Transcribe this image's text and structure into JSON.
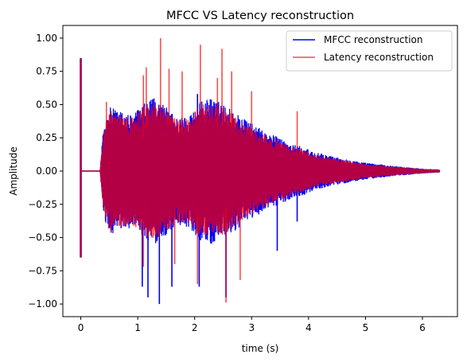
{
  "chart_data": {
    "type": "line",
    "title": "MFCC VS Latency reconstruction",
    "xlabel": "time (s)",
    "ylabel": "Amplitude",
    "xlim": [
      -0.315,
      6.615
    ],
    "ylim": [
      -1.095,
      1.095
    ],
    "x_ticks": [
      0,
      1,
      2,
      3,
      4,
      5,
      6
    ],
    "x_tick_labels": [
      "0",
      "1",
      "2",
      "3",
      "4",
      "5",
      "6"
    ],
    "y_ticks": [
      -1.0,
      -0.75,
      -0.5,
      -0.25,
      0.0,
      0.25,
      0.5,
      0.75,
      1.0
    ],
    "y_tick_labels": [
      "−1.00",
      "−0.75",
      "−0.50",
      "−0.25",
      "0.00",
      "0.25",
      "0.50",
      "0.75",
      "1.00"
    ],
    "grid": false,
    "legend_position": "top-right",
    "series": [
      {
        "name": "MFCC reconstruction",
        "color": "#0000ff",
        "opacity": 1.0,
        "envelope": {
          "t": [
            0.0,
            0.34,
            0.4,
            0.5,
            0.7,
            0.9,
            1.1,
            1.3,
            1.5,
            1.7,
            1.9,
            2.1,
            2.3,
            2.5,
            2.7,
            2.9,
            3.1,
            3.3,
            3.5,
            3.7,
            3.9,
            4.1,
            4.5,
            5.0,
            5.5,
            6.0,
            6.3
          ],
          "amp": [
            0.0,
            0.0,
            0.35,
            0.48,
            0.45,
            0.42,
            0.5,
            0.55,
            0.48,
            0.4,
            0.42,
            0.52,
            0.55,
            0.5,
            0.45,
            0.38,
            0.33,
            0.28,
            0.25,
            0.2,
            0.18,
            0.14,
            0.1,
            0.06,
            0.035,
            0.015,
            0.008
          ]
        },
        "impulse": [
          {
            "t": 0.0,
            "max": 0.85,
            "min": -0.65
          }
        ],
        "peaks": [
          {
            "t": 1.08,
            "y": -0.87
          },
          {
            "t": 1.18,
            "y": -0.95
          },
          {
            "t": 1.38,
            "y": -1.0
          },
          {
            "t": 1.6,
            "y": -0.87
          },
          {
            "t": 2.08,
            "y": -0.87
          },
          {
            "t": 2.55,
            "y": -0.95
          },
          {
            "t": 2.05,
            "y": 0.58
          },
          {
            "t": 3.45,
            "y": -0.6
          },
          {
            "t": 3.8,
            "y": -0.38
          }
        ]
      },
      {
        "name": "Latency reconstruction",
        "color": "#ff0000",
        "opacity": 0.7,
        "envelope": {
          "t": [
            0.0,
            0.34,
            0.4,
            0.5,
            0.7,
            0.9,
            1.1,
            1.3,
            1.5,
            1.7,
            1.9,
            2.1,
            2.3,
            2.5,
            2.7,
            2.9,
            3.1,
            3.3,
            3.5,
            3.7,
            3.9,
            4.1,
            4.5,
            5.0,
            5.5,
            6.0,
            6.3
          ],
          "amp": [
            0.0,
            0.0,
            0.32,
            0.45,
            0.42,
            0.4,
            0.48,
            0.52,
            0.45,
            0.38,
            0.4,
            0.5,
            0.5,
            0.48,
            0.42,
            0.35,
            0.3,
            0.26,
            0.22,
            0.18,
            0.16,
            0.12,
            0.09,
            0.05,
            0.03,
            0.013,
            0.007
          ]
        },
        "impulse": [
          {
            "t": 0.0,
            "max": 0.84,
            "min": -0.64
          }
        ],
        "peaks": [
          {
            "t": 1.4,
            "y": 1.0
          },
          {
            "t": 1.15,
            "y": 0.78
          },
          {
            "t": 1.55,
            "y": 0.77
          },
          {
            "t": 1.1,
            "y": 0.72
          },
          {
            "t": 1.78,
            "y": 0.75
          },
          {
            "t": 2.1,
            "y": 0.95
          },
          {
            "t": 2.48,
            "y": 0.92
          },
          {
            "t": 2.4,
            "y": 0.7
          },
          {
            "t": 2.65,
            "y": 0.75
          },
          {
            "t": 0.45,
            "y": 0.52
          },
          {
            "t": 2.55,
            "y": -0.99
          },
          {
            "t": 2.05,
            "y": -0.85
          },
          {
            "t": 2.8,
            "y": -0.82
          },
          {
            "t": 3.0,
            "y": 0.6
          },
          {
            "t": 3.8,
            "y": 0.45
          },
          {
            "t": 1.1,
            "y": -0.72
          },
          {
            "t": 1.65,
            "y": -0.7
          }
        ]
      }
    ],
    "overlap_color": "#b30045"
  }
}
